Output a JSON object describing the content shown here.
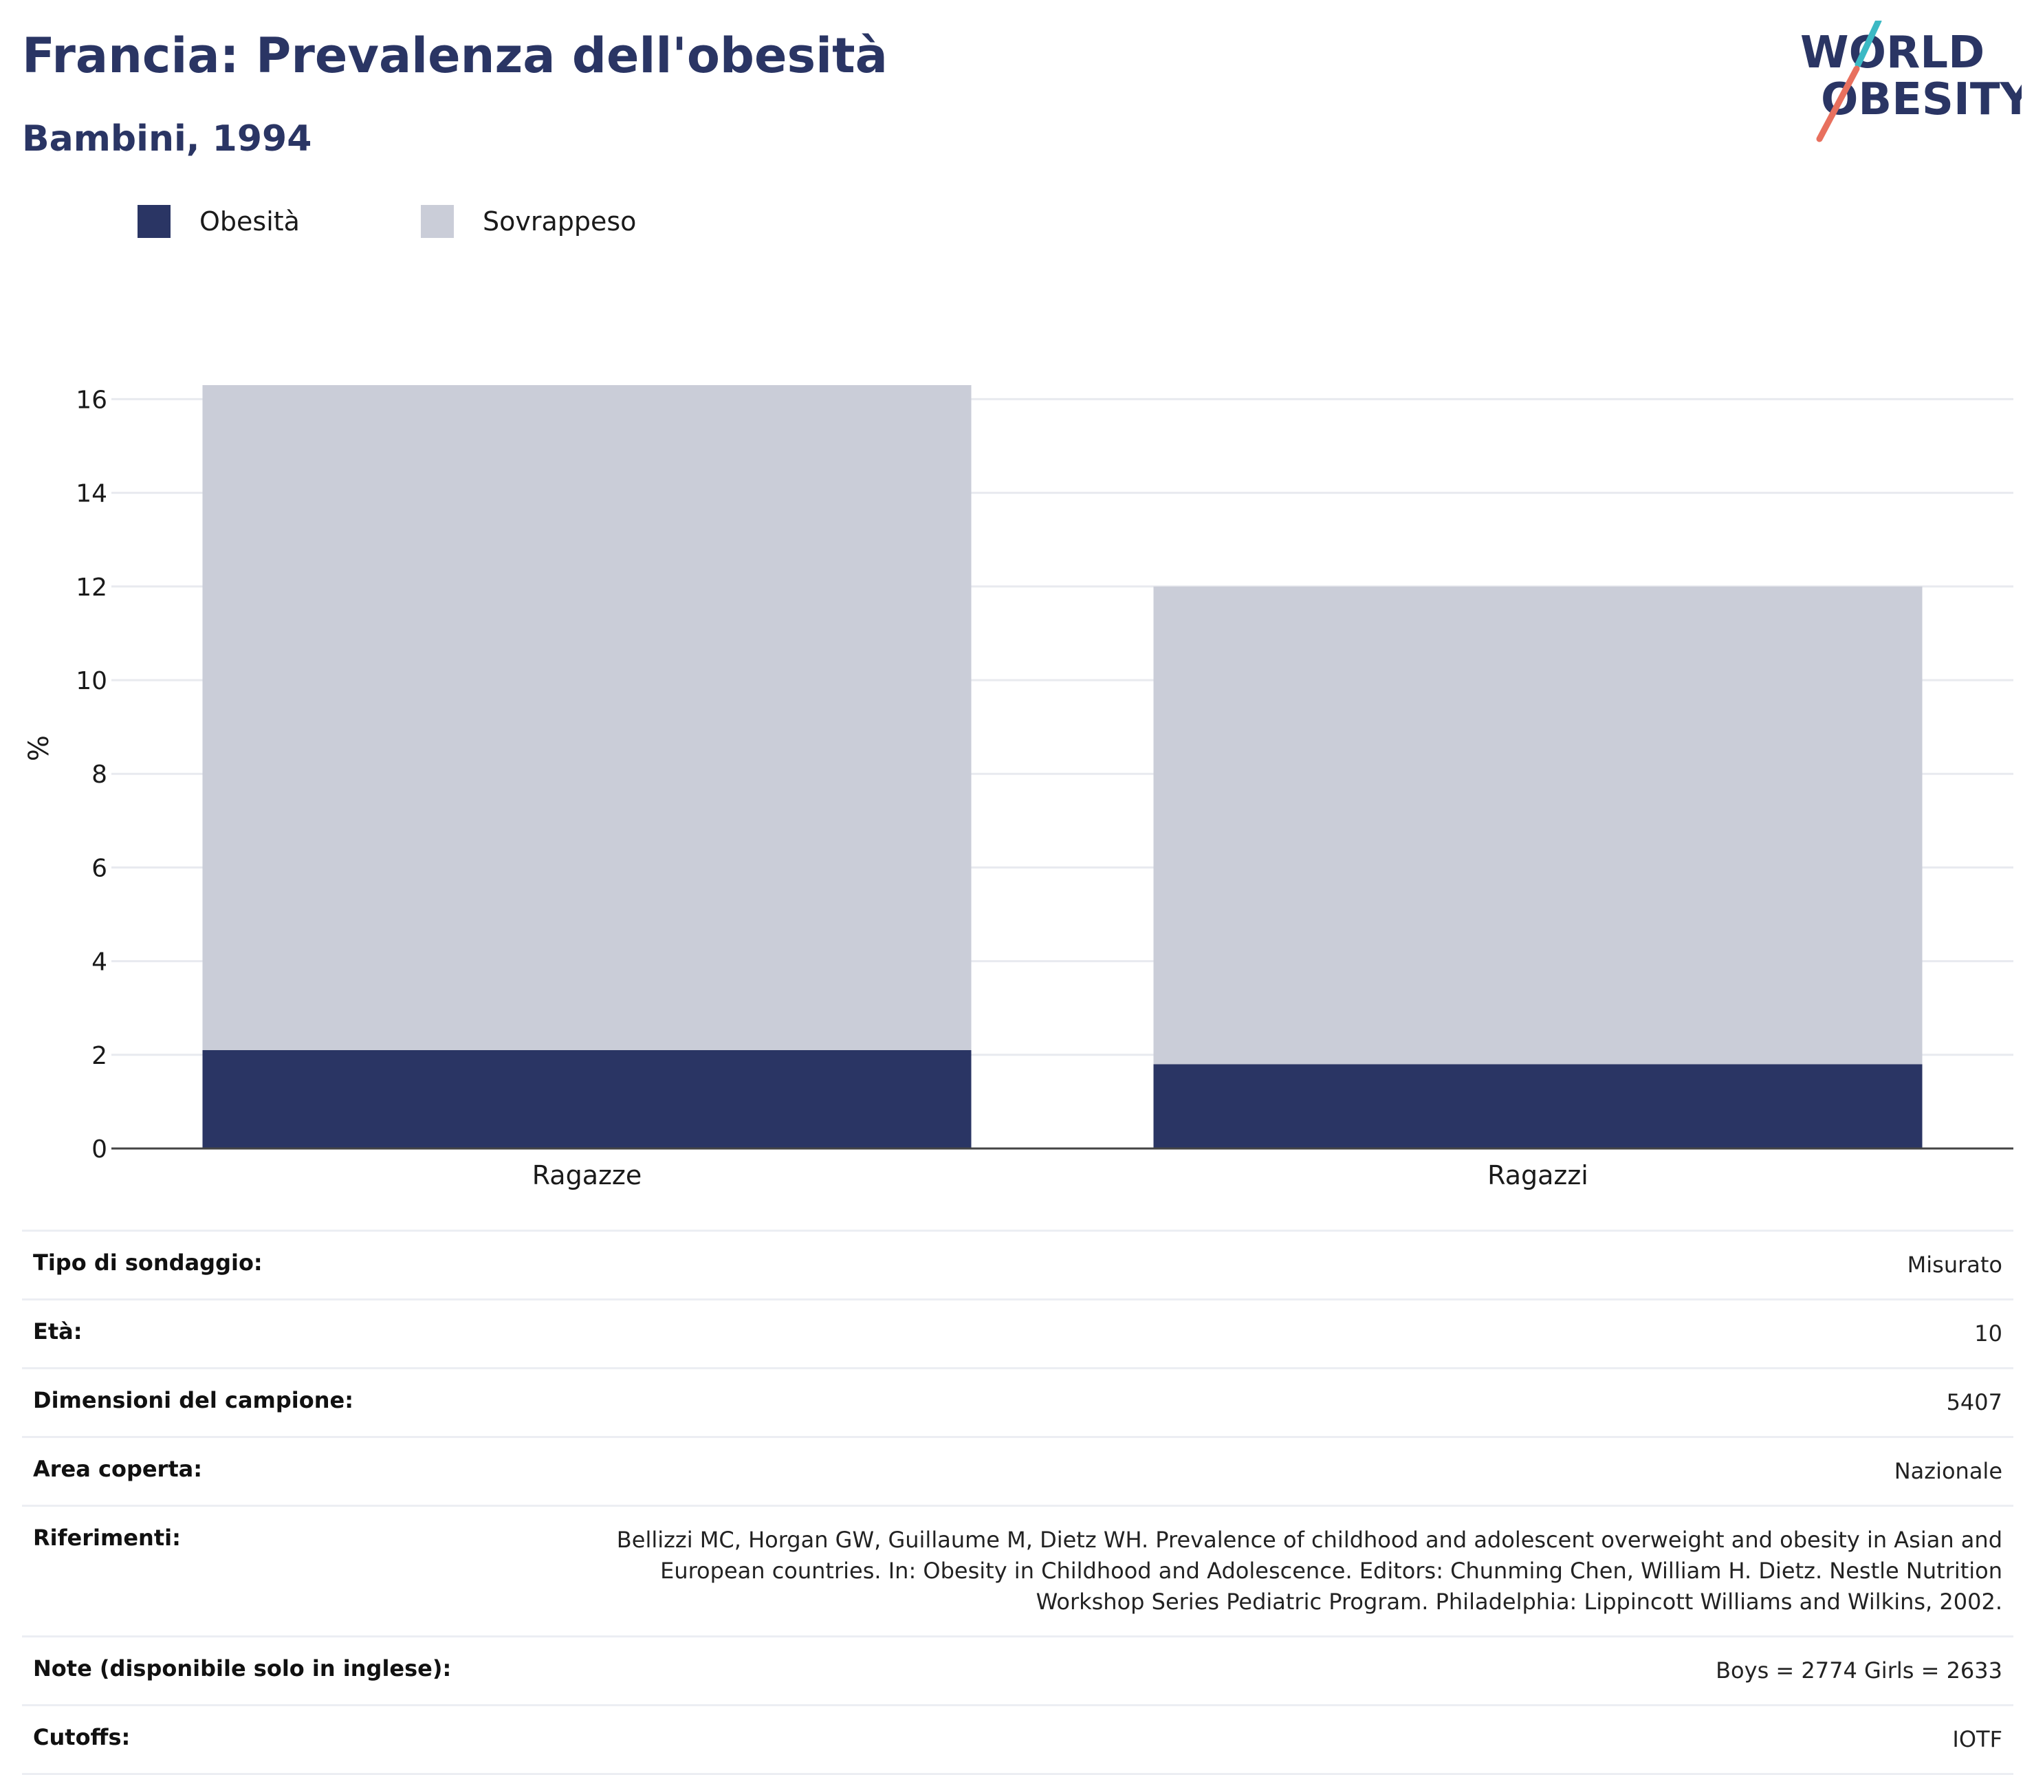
{
  "title": "Francia: Prevalenza dell'obesità",
  "subtitle": "Bambini, 1994",
  "logo": {
    "line1": "WORLD",
    "line2": "OBESITY",
    "accent_colors": [
      "#3bb9c4",
      "#e8705e"
    ]
  },
  "colors": {
    "obesity": "#2a3564",
    "overweight": "#cacdd8",
    "title": "#2a3564"
  },
  "legend": [
    {
      "label": "Obesità",
      "color": "#2a3564"
    },
    {
      "label": "Sovrappeso",
      "color": "#cacdd8"
    }
  ],
  "chart_data": {
    "type": "bar",
    "stacked": true,
    "categories": [
      "Ragazze",
      "Ragazzi"
    ],
    "series": [
      {
        "name": "Obesità",
        "values": [
          2.1,
          1.8
        ]
      },
      {
        "name": "Sovrappeso",
        "values": [
          14.2,
          10.2
        ]
      }
    ],
    "totals": [
      16.3,
      12.0
    ],
    "ylabel": "%",
    "yticks": [
      0,
      2,
      4,
      6,
      8,
      10,
      12,
      14,
      16
    ],
    "ylim": [
      0,
      16.3
    ],
    "grid": true
  },
  "info": [
    {
      "key": "Tipo di sondaggio:",
      "value": "Misurato"
    },
    {
      "key": "Età:",
      "value": "10"
    },
    {
      "key": "Dimensioni del campione:",
      "value": "5407"
    },
    {
      "key": "Area coperta:",
      "value": "Nazionale"
    },
    {
      "key": "Riferimenti:",
      "value": "Bellizzi MC, Horgan GW, Guillaume M, Dietz WH. Prevalence of childhood and adolescent overweight and obesity in Asian and European countries. In: Obesity in Childhood and Adolescence. Editors: Chunming Chen, William H. Dietz. Nestle Nutrition Workshop Series Pediatric Program. Philadelphia: Lippincott Williams and Wilkins, 2002."
    },
    {
      "key": "Note (disponibile solo in inglese):",
      "value": "Boys = 2774 Girls = 2633"
    },
    {
      "key": "Cutoffs:",
      "value": "IOTF"
    }
  ]
}
